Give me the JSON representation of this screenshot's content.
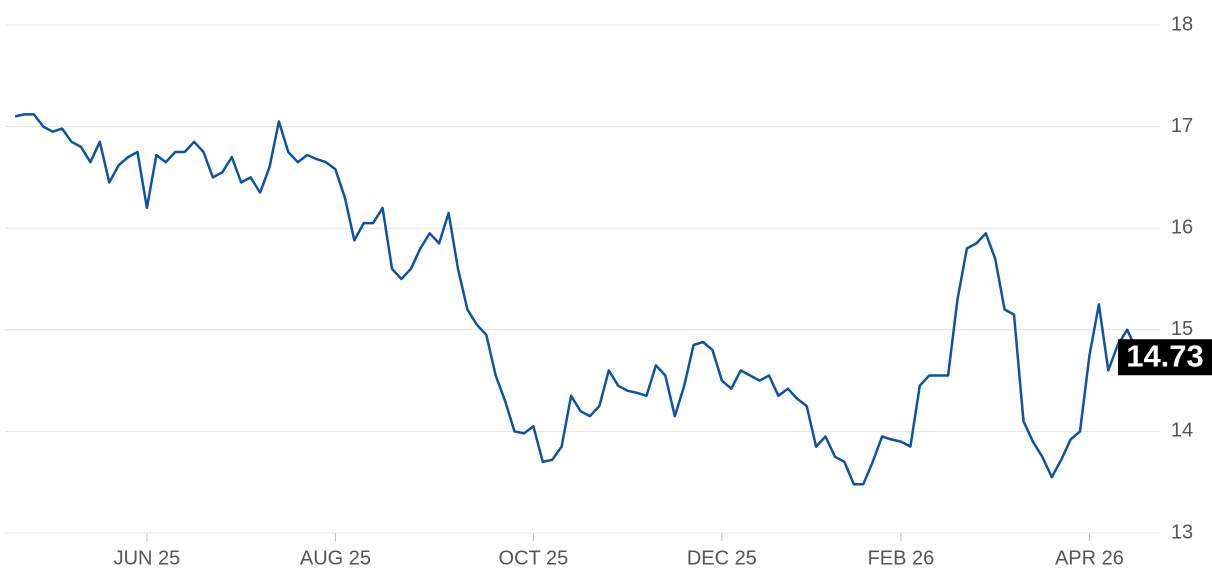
{
  "chart_data": {
    "type": "line",
    "categories": [
      null,
      null,
      null,
      null,
      null,
      null,
      null,
      null,
      null,
      null,
      null,
      null,
      null,
      null,
      "JUN 25",
      null,
      null,
      null,
      null,
      null,
      null,
      null,
      null,
      null,
      null,
      null,
      null,
      null,
      null,
      null,
      null,
      null,
      null,
      null,
      "AUG 25",
      null,
      null,
      null,
      null,
      null,
      null,
      null,
      null,
      null,
      null,
      null,
      null,
      null,
      null,
      null,
      null,
      null,
      null,
      null,
      null,
      "OCT 25",
      null,
      null,
      null,
      null,
      null,
      null,
      null,
      null,
      null,
      null,
      null,
      null,
      null,
      null,
      null,
      null,
      null,
      null,
      null,
      "DEC 25",
      null,
      null,
      null,
      null,
      null,
      null,
      null,
      null,
      null,
      null,
      null,
      null,
      null,
      null,
      null,
      null,
      null,
      null,
      "FEB 26",
      null,
      null,
      null,
      null,
      null,
      null,
      null,
      null,
      null,
      null,
      null,
      null,
      null,
      null,
      null,
      null,
      null,
      null,
      null,
      "APR 26",
      null,
      null,
      null,
      null,
      null,
      null
    ],
    "values": [
      17.1,
      17.12,
      17.12,
      17.0,
      16.95,
      16.98,
      16.85,
      16.8,
      16.65,
      16.85,
      16.45,
      16.62,
      16.7,
      16.75,
      16.2,
      16.72,
      16.65,
      16.75,
      16.75,
      16.85,
      16.75,
      16.5,
      16.55,
      16.7,
      16.45,
      16.5,
      16.35,
      16.6,
      17.05,
      16.75,
      16.65,
      16.72,
      16.68,
      16.65,
      16.58,
      16.3,
      15.88,
      16.05,
      16.05,
      16.2,
      15.6,
      15.5,
      15.6,
      15.8,
      15.95,
      15.85,
      16.15,
      15.6,
      15.2,
      15.05,
      14.95,
      14.55,
      14.3,
      14.0,
      13.98,
      14.05,
      13.7,
      13.72,
      13.85,
      14.35,
      14.2,
      14.15,
      14.25,
      14.6,
      14.45,
      14.4,
      14.38,
      14.35,
      14.65,
      14.55,
      14.15,
      14.45,
      14.85,
      14.88,
      14.8,
      14.5,
      14.42,
      14.6,
      14.55,
      14.5,
      14.55,
      14.35,
      14.42,
      14.32,
      14.25,
      13.85,
      13.95,
      13.75,
      13.7,
      13.48,
      13.48,
      13.7,
      13.95,
      13.92,
      13.9,
      13.85,
      14.45,
      14.55,
      14.55,
      14.55,
      15.3,
      15.8,
      15.85,
      15.95,
      15.7,
      15.2,
      15.15,
      14.1,
      13.9,
      13.75,
      13.55,
      13.72,
      13.92,
      14.0,
      14.75,
      15.25,
      14.6,
      14.85,
      15.0,
      14.8,
      14.73
    ],
    "color": "#0d53a5",
    "ylim": [
      13,
      18
    ],
    "yticks": [
      13,
      14,
      15,
      16,
      17,
      18
    ],
    "grid": true
  }
}
